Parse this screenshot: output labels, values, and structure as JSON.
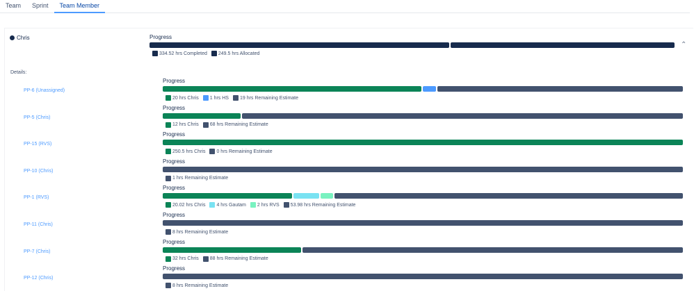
{
  "tabs": [
    {
      "label": "Team"
    },
    {
      "label": "Sprint"
    },
    {
      "label": "Team Member",
      "active": true
    }
  ],
  "member": {
    "name": "Chris",
    "progress_label": "Progress",
    "segments": [
      {
        "hours": 334.52,
        "label": "334.52 hrs Completed",
        "color": "#172b4d"
      },
      {
        "hours": 249.5,
        "label": "249.5 hrs Allocated",
        "color": "#172b4d"
      }
    ],
    "collapse_icon": "chevron-up-icon"
  },
  "details_label": "Details:",
  "colors": {
    "member": "#0b8457",
    "hs": "#4c9aff",
    "remaining": "#42526e",
    "gautam": "#79e2f2",
    "rvs": "#79f2c0"
  },
  "issues": [
    {
      "key": "PP-6 (Unassigned)",
      "progress_label": "Progress",
      "segments": [
        {
          "hours": 20,
          "label": "20 hrs Chris",
          "color": "#0b8457"
        },
        {
          "hours": 1,
          "label": "1 hrs HS",
          "color": "#4c9aff"
        },
        {
          "hours": 19,
          "label": "19 hrs Remaining Estimate",
          "color": "#42526e"
        }
      ]
    },
    {
      "key": "PP-5 (Chris)",
      "progress_label": "Progress",
      "segments": [
        {
          "hours": 12,
          "label": "12 hrs Chris",
          "color": "#0b8457"
        },
        {
          "hours": 68,
          "label": "68 hrs Remaining Estimate",
          "color": "#42526e"
        }
      ]
    },
    {
      "key": "PP-15 (RVS)",
      "progress_label": "Progress",
      "segments": [
        {
          "hours": 250.5,
          "label": "250.5 hrs Chris",
          "color": "#0b8457"
        },
        {
          "hours": 0,
          "label": "0 hrs Remaining Estimate",
          "color": "#42526e"
        }
      ]
    },
    {
      "key": "PP-10 (Chris)",
      "progress_label": "Progress",
      "segments": [
        {
          "hours": 1,
          "label": "1 hrs Remaining Estimate",
          "color": "#42526e"
        }
      ]
    },
    {
      "key": "PP-1 (RVS)",
      "progress_label": "Progress",
      "segments": [
        {
          "hours": 20.02,
          "label": "20.02 hrs Chris",
          "color": "#0b8457"
        },
        {
          "hours": 4,
          "label": "4 hrs Gautam",
          "color": "#79e2f2"
        },
        {
          "hours": 2,
          "label": "2 hrs RVS",
          "color": "#79f2c0"
        },
        {
          "hours": 53.98,
          "label": "53.98 hrs Remaining Estimate",
          "color": "#42526e"
        }
      ]
    },
    {
      "key": "PP-11 (Chris)",
      "progress_label": "Progress",
      "segments": [
        {
          "hours": 8,
          "label": "8 hrs Remaining Estimate",
          "color": "#42526e"
        }
      ]
    },
    {
      "key": "PP-7 (Chris)",
      "progress_label": "Progress",
      "segments": [
        {
          "hours": 32,
          "label": "32 hrs Chris",
          "color": "#0b8457"
        },
        {
          "hours": 88,
          "label": "88 hrs Remaining Estimate",
          "color": "#42526e"
        }
      ]
    },
    {
      "key": "PP-12 (Chris)",
      "progress_label": "Progress",
      "segments": [
        {
          "hours": 8,
          "label": "8 hrs Remaining Estimate",
          "color": "#42526e"
        }
      ]
    }
  ]
}
